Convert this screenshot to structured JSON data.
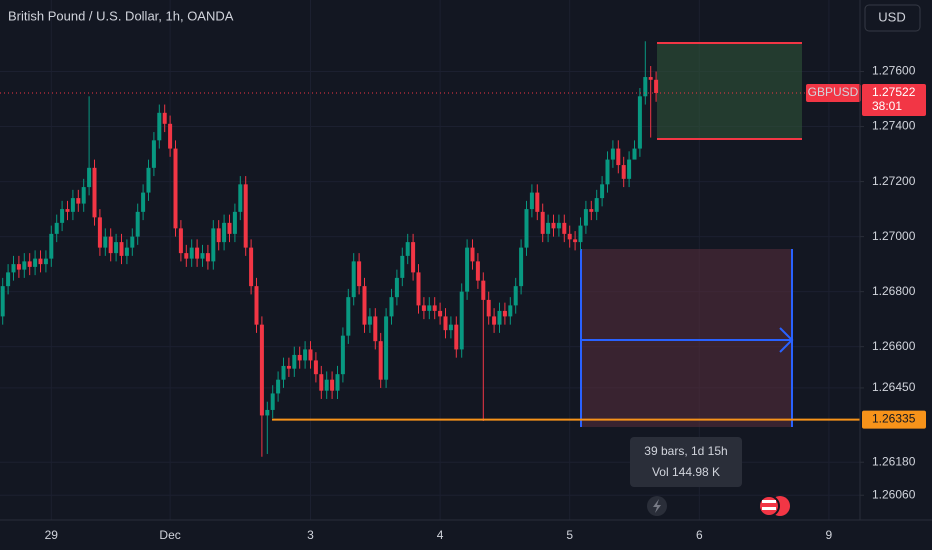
{
  "chart_data": {
    "type": "candlestick",
    "title": "British Pound / U.S. Dollar, 1h, OANDA",
    "currency": "USD",
    "symbol": "GBPUSD",
    "countdown": "38:01",
    "up_color": "#089981",
    "down_color": "#f23645",
    "grid": true,
    "hline": {
      "value": 1.26335,
      "color": "#f7931a"
    },
    "measure": {
      "bars": "39 bars, 1d 15h",
      "volume": "Vol 144.98 K"
    },
    "ylim": [
      1.2597,
      1.2786
    ],
    "yticks": [
      {
        "value": 1.276,
        "label": "1.27600"
      },
      {
        "value": 1.274,
        "label": "1.27400"
      },
      {
        "value": 1.272,
        "label": "1.27200"
      },
      {
        "value": 1.27,
        "label": "1.27000"
      },
      {
        "value": 1.268,
        "label": "1.26800"
      },
      {
        "value": 1.266,
        "label": "1.26600"
      },
      {
        "value": 1.2645,
        "label": "1.26450"
      },
      {
        "value": 1.2618,
        "label": "1.26180"
      },
      {
        "value": 1.2606,
        "label": "1.26060"
      }
    ],
    "categories": [
      null,
      null,
      null,
      null,
      null,
      null,
      null,
      null,
      null,
      "29",
      null,
      null,
      null,
      null,
      null,
      null,
      null,
      null,
      null,
      null,
      null,
      null,
      null,
      null,
      null,
      null,
      null,
      null,
      null,
      null,
      null,
      "Dec",
      null,
      null,
      null,
      null,
      null,
      null,
      null,
      null,
      null,
      null,
      null,
      null,
      null,
      null,
      null,
      null,
      null,
      null,
      null,
      null,
      null,
      null,
      null,
      null,
      null,
      "3",
      null,
      null,
      null,
      null,
      null,
      null,
      null,
      null,
      null,
      null,
      null,
      null,
      null,
      null,
      null,
      null,
      null,
      null,
      null,
      null,
      null,
      null,
      null,
      "4",
      null,
      null,
      null,
      null,
      null,
      null,
      null,
      null,
      null,
      null,
      null,
      null,
      null,
      null,
      null,
      null,
      null,
      null,
      null,
      null,
      null,
      null,
      null,
      "5",
      null,
      null,
      null,
      null,
      null,
      null,
      null,
      null,
      null,
      null,
      null,
      null,
      null,
      null,
      null,
      null,
      null,
      null,
      null,
      null,
      null,
      null,
      null,
      "6",
      null,
      null,
      null,
      null,
      null,
      null,
      null,
      null,
      null,
      null,
      null,
      null,
      null,
      null,
      null,
      null,
      null,
      null,
      null,
      null,
      null,
      null,
      null,
      "9",
      null,
      null,
      null,
      null,
      null
    ],
    "open": [
      1.2671,
      1.2682,
      1.2687,
      1.269,
      1.2688,
      1.2691,
      1.2689,
      1.2692,
      1.269,
      1.2692,
      1.2701,
      1.2705,
      1.271,
      1.2709,
      1.2714,
      1.2712,
      1.2718,
      1.2725,
      1.2707,
      1.2696,
      1.27,
      1.2694,
      1.2698,
      1.2693,
      1.2696,
      1.27,
      1.2709,
      1.2716,
      1.2725,
      1.2735,
      1.2745,
      1.2741,
      1.2732,
      1.2703,
      1.2694,
      1.2692,
      1.2696,
      1.2692,
      1.2694,
      1.2691,
      1.2703,
      1.2698,
      1.2705,
      1.2701,
      1.2709,
      1.2719,
      1.2696,
      1.2682,
      1.2668,
      1.2635,
      1.2637,
      1.2643,
      1.2648,
      1.2653,
      1.2652,
      1.2657,
      1.2655,
      1.2659,
      1.2655,
      1.265,
      1.2644,
      1.2648,
      1.2644,
      1.265,
      1.2664,
      1.2678,
      1.2691,
      1.2682,
      1.2668,
      1.2671,
      1.2662,
      1.2648,
      1.2671,
      1.2678,
      1.2685,
      1.2693,
      1.2698,
      1.2687,
      1.2675,
      1.2673,
      1.2675,
      1.2673,
      1.2671,
      1.2666,
      1.2668,
      1.2659,
      1.268,
      1.2696,
      1.2691,
      1.2684,
      1.2677,
      1.2671,
      1.2668,
      1.2673,
      1.2671,
      1.2675,
      1.2682,
      1.2696,
      1.271,
      1.2716,
      1.2709,
      1.2701,
      1.2705,
      1.2703,
      1.2705,
      1.2701,
      1.2699,
      1.2698,
      1.2704,
      1.271,
      1.2709,
      1.2714,
      1.2719,
      1.2728,
      1.2732,
      1.2726,
      1.2721,
      1.2728,
      1.2732,
      1.2751,
      1.2758,
      1.2757,
      null,
      null,
      null,
      null,
      null,
      null,
      null,
      null,
      null,
      null,
      null,
      null,
      null,
      null,
      null,
      null,
      null,
      null,
      null,
      null,
      null,
      null,
      null,
      null,
      null,
      null,
      null,
      null,
      null,
      null,
      null,
      null,
      null,
      null,
      null,
      null,
      null
    ],
    "high": [
      1.2685,
      1.269,
      1.2693,
      1.2693,
      1.2694,
      1.2694,
      1.2695,
      1.2695,
      1.2695,
      1.2704,
      1.2708,
      1.2713,
      1.2713,
      1.2717,
      1.2717,
      1.2721,
      1.2751,
      1.2728,
      1.271,
      1.2703,
      1.2703,
      1.2701,
      1.2701,
      1.2699,
      1.2703,
      1.2712,
      1.2719,
      1.2728,
      1.2738,
      1.2748,
      1.2748,
      1.2744,
      1.2735,
      1.2706,
      1.2697,
      1.2699,
      1.2699,
      1.2697,
      1.2697,
      1.2706,
      1.2706,
      1.2708,
      1.2708,
      1.2712,
      1.2722,
      1.2722,
      1.2699,
      1.2685,
      1.2671,
      1.264,
      1.2646,
      1.2651,
      1.2656,
      1.2656,
      1.266,
      1.266,
      1.2662,
      1.2662,
      1.2658,
      1.2653,
      1.2651,
      1.2651,
      1.2653,
      1.2667,
      1.2681,
      1.2694,
      1.2694,
      1.2685,
      1.2674,
      1.2674,
      1.2665,
      1.2674,
      1.2681,
      1.2688,
      1.2696,
      1.2701,
      1.2701,
      1.269,
      1.2678,
      1.2678,
      1.2678,
      1.2676,
      1.2674,
      1.2671,
      1.2671,
      1.2683,
      1.2699,
      1.2699,
      1.2694,
      1.2687,
      1.268,
      1.2674,
      1.2676,
      1.2676,
      1.2678,
      1.2685,
      1.2699,
      1.2713,
      1.2719,
      1.2719,
      1.2712,
      1.2708,
      1.2708,
      1.2708,
      1.2708,
      1.2704,
      1.2702,
      1.2707,
      1.2713,
      1.2713,
      1.2717,
      1.2722,
      1.2731,
      1.2735,
      1.2735,
      1.2729,
      1.2731,
      1.2735,
      1.2754,
      1.2771,
      1.2762,
      1.276,
      null,
      null,
      null,
      null,
      null,
      null,
      null,
      null,
      null,
      null,
      null,
      null,
      null,
      null,
      null,
      null,
      null,
      null,
      null,
      null,
      null,
      null,
      null,
      null,
      null,
      null,
      null,
      null,
      null,
      null,
      null,
      null,
      null,
      null,
      null,
      null,
      null
    ],
    "low": [
      1.2668,
      1.2679,
      1.2684,
      1.2685,
      1.2685,
      1.2686,
      1.2686,
      1.2687,
      1.2687,
      1.2689,
      1.2698,
      1.2702,
      1.2706,
      1.2706,
      1.2709,
      1.2709,
      1.2715,
      1.2704,
      1.2693,
      1.2693,
      1.2691,
      1.2691,
      1.269,
      1.269,
      1.2693,
      1.2697,
      1.2706,
      1.2713,
      1.2722,
      1.2732,
      1.2738,
      1.2729,
      1.27,
      1.2691,
      1.2689,
      1.2689,
      1.2689,
      1.2689,
      1.2688,
      1.2688,
      1.2695,
      1.2695,
      1.2698,
      1.2698,
      1.2706,
      1.2693,
      1.2679,
      1.2665,
      1.262,
      1.2621,
      1.2634,
      1.264,
      1.2645,
      1.2649,
      1.2649,
      1.2652,
      1.2652,
      1.2652,
      1.2647,
      1.2641,
      1.2641,
      1.2641,
      1.2641,
      1.2647,
      1.2661,
      1.2675,
      1.2679,
      1.2665,
      1.2665,
      1.2659,
      1.2645,
      1.2645,
      1.2668,
      1.2675,
      1.2682,
      1.269,
      1.2684,
      1.2672,
      1.267,
      1.267,
      1.267,
      1.2668,
      1.2663,
      1.2663,
      1.2656,
      1.2656,
      1.2677,
      1.2688,
      1.2681,
      1.2633,
      1.2668,
      1.2665,
      1.2665,
      1.2668,
      1.2668,
      1.2672,
      1.2679,
      1.2693,
      1.2707,
      1.2706,
      1.2698,
      1.2698,
      1.27,
      1.27,
      1.2698,
      1.2696,
      1.2695,
      1.2695,
      1.2701,
      1.2706,
      1.2706,
      1.2711,
      1.2716,
      1.2725,
      1.2723,
      1.2718,
      1.2718,
      1.2729,
      1.2729,
      1.2748,
      1.2736,
      1.2749,
      null,
      null,
      null,
      null,
      null,
      null,
      null,
      null,
      null,
      null,
      null,
      null,
      null,
      null,
      null,
      null,
      null,
      null,
      null,
      null,
      null,
      null,
      null,
      null,
      null,
      null,
      null,
      null,
      null,
      null,
      null,
      null,
      null,
      null,
      null,
      null,
      null
    ],
    "close": [
      1.2682,
      1.2687,
      1.269,
      1.2688,
      1.2691,
      1.2689,
      1.2692,
      1.269,
      1.2692,
      1.2701,
      1.2705,
      1.271,
      1.2709,
      1.2714,
      1.2712,
      1.2718,
      1.2725,
      1.2707,
      1.2696,
      1.27,
      1.2694,
      1.2698,
      1.2693,
      1.2696,
      1.27,
      1.2709,
      1.2716,
      1.2725,
      1.2735,
      1.2745,
      1.2741,
      1.2732,
      1.2703,
      1.2694,
      1.2692,
      1.2696,
      1.2692,
      1.2694,
      1.2691,
      1.2703,
      1.2698,
      1.2705,
      1.2701,
      1.2709,
      1.2719,
      1.2696,
      1.2682,
      1.2668,
      1.2635,
      1.2637,
      1.2643,
      1.2648,
      1.2653,
      1.2652,
      1.2657,
      1.2655,
      1.2659,
      1.2655,
      1.265,
      1.2644,
      1.2648,
      1.2644,
      1.265,
      1.2664,
      1.2678,
      1.2691,
      1.2682,
      1.2668,
      1.2671,
      1.2662,
      1.2648,
      1.2671,
      1.2678,
      1.2685,
      1.2693,
      1.2698,
      1.2687,
      1.2675,
      1.2673,
      1.2675,
      1.2673,
      1.2671,
      1.2666,
      1.2668,
      1.2659,
      1.268,
      1.2696,
      1.2691,
      1.2684,
      1.2677,
      1.2671,
      1.2668,
      1.2673,
      1.2671,
      1.2675,
      1.2682,
      1.2696,
      1.271,
      1.2716,
      1.2709,
      1.2701,
      1.2705,
      1.2703,
      1.2705,
      1.2701,
      1.2699,
      1.2698,
      1.2704,
      1.271,
      1.2709,
      1.2714,
      1.2719,
      1.2728,
      1.2732,
      1.2726,
      1.2721,
      1.2728,
      1.2732,
      1.2751,
      1.2758,
      1.2757,
      1.27522,
      null,
      null,
      null,
      null,
      null,
      null,
      null,
      null,
      null,
      null,
      null,
      null,
      null,
      null,
      null,
      null,
      null,
      null,
      null,
      null,
      null,
      null,
      null,
      null,
      null,
      null,
      null,
      null,
      null,
      null,
      null,
      null,
      null,
      null,
      null,
      null,
      null
    ]
  }
}
